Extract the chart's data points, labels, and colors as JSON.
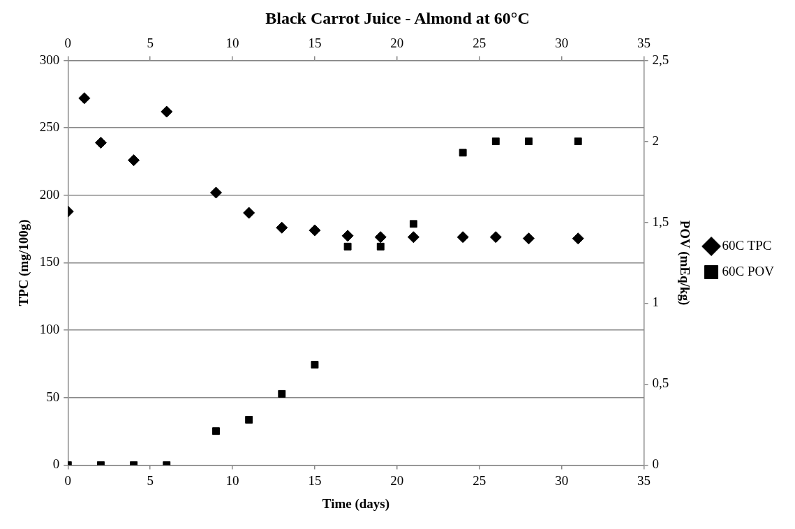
{
  "chart_data": {
    "type": "scatter",
    "title": "Black Carrot Juice - Almond at 60°C",
    "xlabel": "Time (days)",
    "ylabel": "TPC (mg/100g)",
    "y2label": "POV (mEq/kg)",
    "xlim": [
      0,
      35
    ],
    "xticks": [
      0,
      5,
      10,
      15,
      20,
      25,
      30,
      35
    ],
    "x2lim": [
      0,
      35
    ],
    "x2ticks": [
      0,
      5,
      10,
      15,
      20,
      25,
      30,
      35
    ],
    "ylim": [
      0,
      300
    ],
    "yticks": [
      0,
      50,
      100,
      150,
      200,
      250,
      300
    ],
    "y2lim": [
      0,
      2.5
    ],
    "y2ticks": [
      0,
      {
        "value": 0.5,
        "label": "0,5"
      },
      1,
      {
        "value": 1.5,
        "label": "1,5"
      },
      2,
      {
        "value": 2.5,
        "label": "2,5"
      }
    ],
    "grid": "y",
    "legend": "right",
    "series": [
      {
        "name": "60C TPC",
        "color": "#000000",
        "marker": "diamond",
        "x": [
          0,
          1,
          2,
          4,
          6,
          9,
          11,
          13,
          15,
          17,
          19,
          21,
          24,
          26,
          28,
          31
        ],
        "values": [
          188,
          272,
          239,
          226,
          262,
          202,
          187,
          176,
          174,
          170,
          169,
          169,
          169,
          169,
          168,
          168
        ]
      },
      {
        "name": "60C POV",
        "color": "#000000",
        "marker": "square",
        "axis": "y2",
        "x": [
          0,
          2,
          4,
          6,
          9,
          11,
          13,
          15,
          17,
          19,
          21,
          24,
          26,
          28,
          31
        ],
        "values": [
          0,
          0,
          0,
          0,
          0.21,
          0.28,
          0.44,
          0.62,
          1.35,
          1.35,
          1.49,
          1.93,
          2,
          2,
          2
        ]
      }
    ]
  }
}
